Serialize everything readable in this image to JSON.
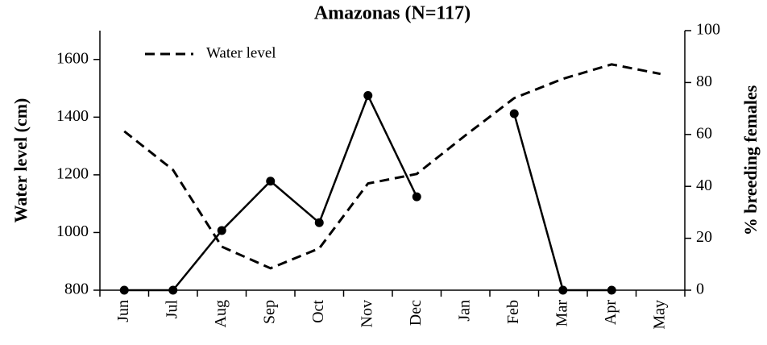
{
  "chart_data": {
    "type": "line",
    "title": "Amazonas (N=117)",
    "y_label": "Water level (cm)",
    "y2_label": "% breeding females",
    "categories": [
      "Jun",
      "Jul",
      "Aug",
      "Sep",
      "Oct",
      "Nov",
      "Dec",
      "Jan",
      "Feb",
      "Mar",
      "Apr",
      "May"
    ],
    "series": [
      {
        "name": "Water level",
        "color": "#000000",
        "dash": true,
        "values": [
          1351,
          1217,
          951,
          876,
          945,
          1170,
          1203,
          1337,
          1466,
          1533,
          1583,
          1550
        ]
      },
      {
        "color": "#000000",
        "axis": "y2",
        "markers": true,
        "values": [
          0,
          0,
          23,
          42,
          26,
          75,
          36,
          null,
          68,
          0,
          0,
          null
        ]
      }
    ],
    "ylim": [
      800,
      1700
    ],
    "yticks": [
      800,
      1000,
      1200,
      1400,
      1600
    ],
    "y2lim": [
      0,
      100
    ],
    "y2ticks": [
      0,
      20,
      40,
      60,
      80,
      100
    ],
    "legend": "upper left"
  }
}
